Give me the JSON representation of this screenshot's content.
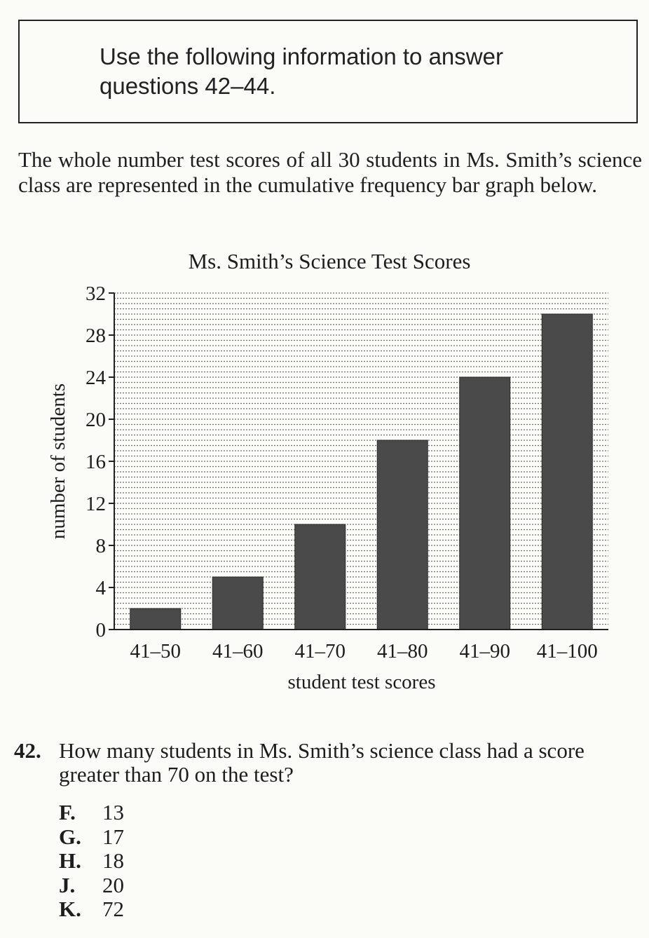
{
  "info_box": {
    "text_line1": "Use the following information to answer",
    "text_line2": "questions 42–44."
  },
  "intro": "The whole number test scores of all 30 students in Ms. Smith’s science class are represented in the cumulative frequency bar graph below.",
  "chart_data": {
    "type": "bar",
    "title": "Ms. Smith’s Science Test Scores",
    "xlabel": "student test scores",
    "ylabel": "number of students",
    "categories": [
      "41–50",
      "41–60",
      "41–70",
      "41–80",
      "41–90",
      "41–100"
    ],
    "values": [
      2,
      5,
      10,
      18,
      24,
      30
    ],
    "ylim": [
      0,
      32
    ],
    "yticks": [
      0,
      4,
      8,
      12,
      16,
      20,
      24,
      28,
      32
    ],
    "grid": true,
    "colors": {
      "bar": "#4a4a4a",
      "grid": "#555555"
    }
  },
  "question": {
    "number": "42.",
    "text": "How many students in Ms. Smith’s science class had a score greater than 70 on the test?",
    "choices": [
      {
        "letter": "F.",
        "value": "13"
      },
      {
        "letter": "G.",
        "value": "17"
      },
      {
        "letter": "H.",
        "value": "18"
      },
      {
        "letter": "J.",
        "value": "20"
      },
      {
        "letter": "K.",
        "value": "72"
      }
    ]
  }
}
